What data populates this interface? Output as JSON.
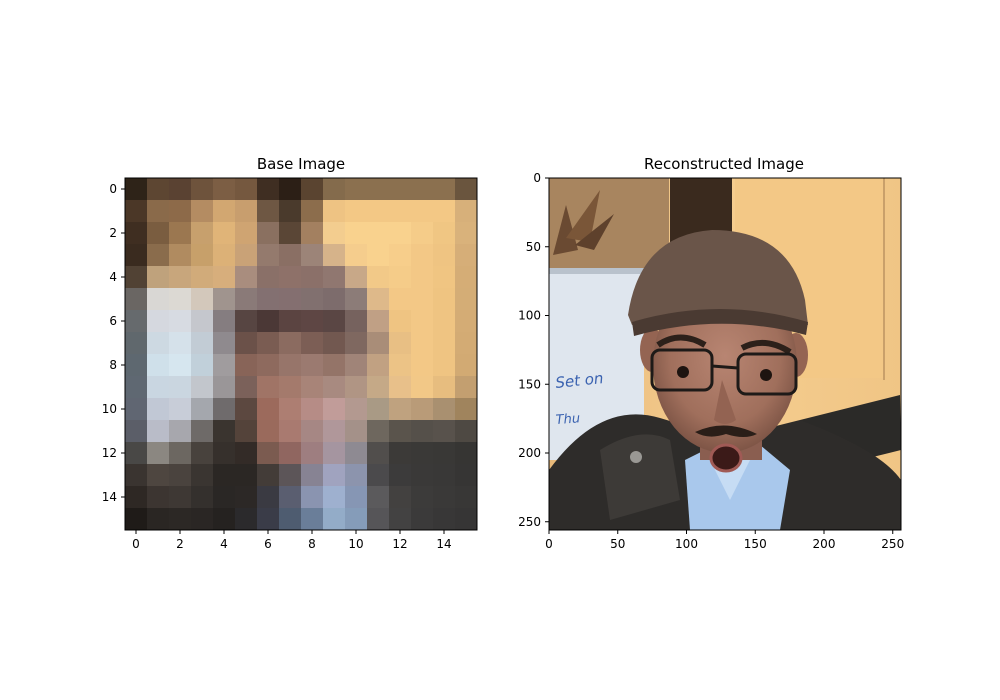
{
  "panels": [
    {
      "title": "Base Image",
      "grid_size": 16,
      "x_ticks": [
        0,
        2,
        4,
        6,
        8,
        10,
        12,
        14
      ],
      "y_ticks": [
        0,
        2,
        4,
        6,
        8,
        10,
        12,
        14
      ],
      "pixels": [
        [
          "#2e2318",
          "#5d4632",
          "#5a4232",
          "#6e533c",
          "#7c5e44",
          "#75583f",
          "#3f2e22",
          "#2c1f16",
          "#5a4430",
          "#846b4c",
          "#8b704f",
          "#8b704f",
          "#8b704f",
          "#8b704f",
          "#8b704f",
          "#6a553e"
        ],
        [
          "#4b3727",
          "#8a6a4a",
          "#8d6a49",
          "#b48c62",
          "#d2a771",
          "#c89e6e",
          "#6e5743",
          "#4a3a2c",
          "#8c6d4c",
          "#eec383",
          "#f3c885",
          "#f3c885",
          "#f3c885",
          "#f3c885",
          "#f3c885",
          "#d7b07a"
        ],
        [
          "#3f2e21",
          "#7a5d40",
          "#9b7750",
          "#c7a06d",
          "#e0b478",
          "#cfa472",
          "#8a7060",
          "#5a4636",
          "#a38060",
          "#f3cd8f",
          "#f9d28e",
          "#f9d28e",
          "#f9d28e",
          "#f5cc89",
          "#f0c683",
          "#d9b27b"
        ],
        [
          "#3a2b1f",
          "#8a6c4c",
          "#b08b60",
          "#c7a06a",
          "#dcb177",
          "#c9a277",
          "#947a6d",
          "#8a6f64",
          "#9c8478",
          "#d6b38a",
          "#f5cd8d",
          "#f9d28e",
          "#f7ce8b",
          "#f3c886",
          "#efc482",
          "#d6ae78"
        ],
        [
          "#514234",
          "#bfa27c",
          "#c8a67c",
          "#d1ab7a",
          "#d7ae7c",
          "#a98d7e",
          "#8a7068",
          "#8e7169",
          "#8b7069",
          "#907770",
          "#c8a888",
          "#f2c988",
          "#f5cc89",
          "#f3c886",
          "#f0c582",
          "#d5ad76"
        ],
        [
          "#6a6663",
          "#d9d7d4",
          "#dcd9d3",
          "#d3c8bb",
          "#a0948e",
          "#8a7a78",
          "#837071",
          "#846f70",
          "#81706f",
          "#7d6c6c",
          "#8c7c78",
          "#deb98a",
          "#f3c886",
          "#f3c886",
          "#efc481",
          "#d4ad76"
        ],
        [
          "#666a6d",
          "#d5d8df",
          "#d7dbe2",
          "#c5c7cd",
          "#857d80",
          "#574542",
          "#4b3836",
          "#5b4441",
          "#5e4644",
          "#5a4644",
          "#76625e",
          "#c0a085",
          "#efc482",
          "#f3c886",
          "#efc482",
          "#d4ac75"
        ],
        [
          "#60686d",
          "#cdd9e2",
          "#d5e1ea",
          "#c2ccd5",
          "#8f8a8e",
          "#6b5149",
          "#7a5c52",
          "#8b6b60",
          "#7c5e55",
          "#725850",
          "#7f6860",
          "#a98d78",
          "#e8bf84",
          "#f3c886",
          "#efc482",
          "#d3ab74"
        ],
        [
          "#5e6870",
          "#cfe0ea",
          "#d6e6ef",
          "#c1d0da",
          "#a09c9e",
          "#886458",
          "#8e6a5e",
          "#97756a",
          "#9b7a70",
          "#947468",
          "#a08478",
          "#c1a182",
          "#ecc386",
          "#f3c886",
          "#efc482",
          "#d2aa73"
        ],
        [
          "#5f6872",
          "#c9d6e1",
          "#cad6e0",
          "#c2c6cc",
          "#9a9698",
          "#7b615a",
          "#a07466",
          "#a47a6c",
          "#a88478",
          "#a88a80",
          "#b09584",
          "#c5a987",
          "#e8c08a",
          "#f2c887",
          "#e7bd7f",
          "#c39f70"
        ],
        [
          "#606672",
          "#c1c8d5",
          "#c8cdd8",
          "#a4a7ad",
          "#6f6b6c",
          "#5c4840",
          "#9c6a5c",
          "#ad7e72",
          "#b68c86",
          "#c19c99",
          "#b39990",
          "#a99a85",
          "#bfa27f",
          "#b99b78",
          "#a99070",
          "#a0845d"
        ],
        [
          "#5b5e68",
          "#b9bcc8",
          "#a7a7ad",
          "#6e6a68",
          "#3a342f",
          "#54433a",
          "#9a6a5c",
          "#a97a70",
          "#a68784",
          "#b0979a",
          "#a49189",
          "#6e675e",
          "#5a544c",
          "#55504a",
          "#58524c",
          "#4e4943"
        ],
        [
          "#494846",
          "#8b8781",
          "#6c6761",
          "#48423d",
          "#36302c",
          "#332b27",
          "#7b5b50",
          "#906660",
          "#9e7e80",
          "#a595a0",
          "#8e8a92",
          "#514e4c",
          "#3c3a38",
          "#3a3937",
          "#393836",
          "#363533"
        ],
        [
          "#3a3430",
          "#4e4640",
          "#4a433e",
          "#3a3531",
          "#2b2724",
          "#2b2724",
          "#433c38",
          "#5c5558",
          "#878393",
          "#a0a3bf",
          "#8c94ad",
          "#4b4a4c",
          "#3c3b3b",
          "#3a3938",
          "#393837",
          "#363534"
        ],
        [
          "#2e2824",
          "#3c3531",
          "#3e3834",
          "#34302d",
          "#2a2725",
          "#2c2826",
          "#3a3a42",
          "#5a5e70",
          "#8a94b0",
          "#9eb0cf",
          "#8696b4",
          "#5b5a5c",
          "#434140",
          "#3c3b3a",
          "#3a3938",
          "#383736"
        ],
        [
          "#1f1b18",
          "#2a2623",
          "#2c2825",
          "#2a2624",
          "#252220",
          "#2b2a2c",
          "#3a3c48",
          "#4e5c70",
          "#6a7e99",
          "#93acc8",
          "#859cb9",
          "#565558",
          "#434242",
          "#3b3a3a",
          "#383737",
          "#363535"
        ]
      ]
    },
    {
      "title": "Reconstructed Image",
      "size": 256,
      "x_ticks": [
        0,
        50,
        100,
        150,
        200,
        250
      ],
      "y_ticks": [
        0,
        50,
        100,
        150,
        200,
        250
      ],
      "photo_text": [
        "Set on",
        "Thu"
      ]
    }
  ],
  "colors": {
    "cap": "#6a5549",
    "cap_band": "#4a3a32",
    "skin": "#a87966",
    "skin_shadow": "#8a5e50",
    "jacket": "#2e2c2a",
    "shirt": "#a9c8ec",
    "wall": "#f2c98b",
    "whiteboard": "#dfe6ee",
    "marker": "#3a62b0"
  }
}
